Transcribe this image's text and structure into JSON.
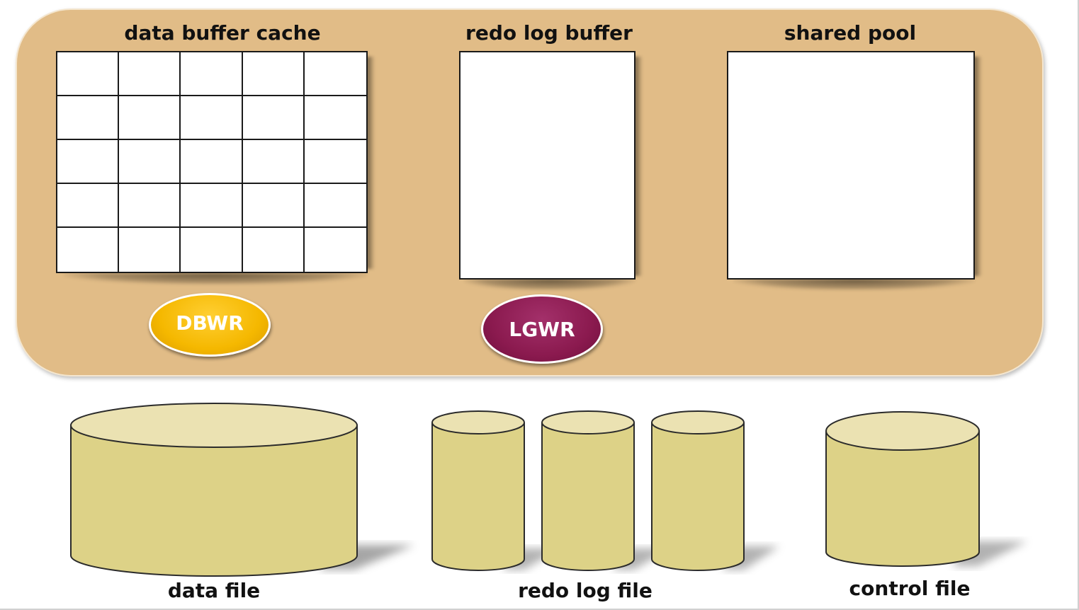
{
  "memory": {
    "data_buffer_cache_label": "data buffer cache",
    "redo_log_buffer_label": "redo log buffer",
    "shared_pool_label": "shared pool"
  },
  "processes": {
    "dbwr": {
      "label": "DBWR",
      "color": "#f5b800"
    },
    "lgwr": {
      "label": "LGWR",
      "color": "#8b1a4f"
    }
  },
  "files": {
    "data_file_label": "data file",
    "redo_log_file_label": "redo log file",
    "control_file_label": "control file"
  },
  "colors": {
    "sga_fill": "#e1bc87",
    "cylinder_body": "#ddd287",
    "cylinder_top": "#ebe2b2"
  }
}
